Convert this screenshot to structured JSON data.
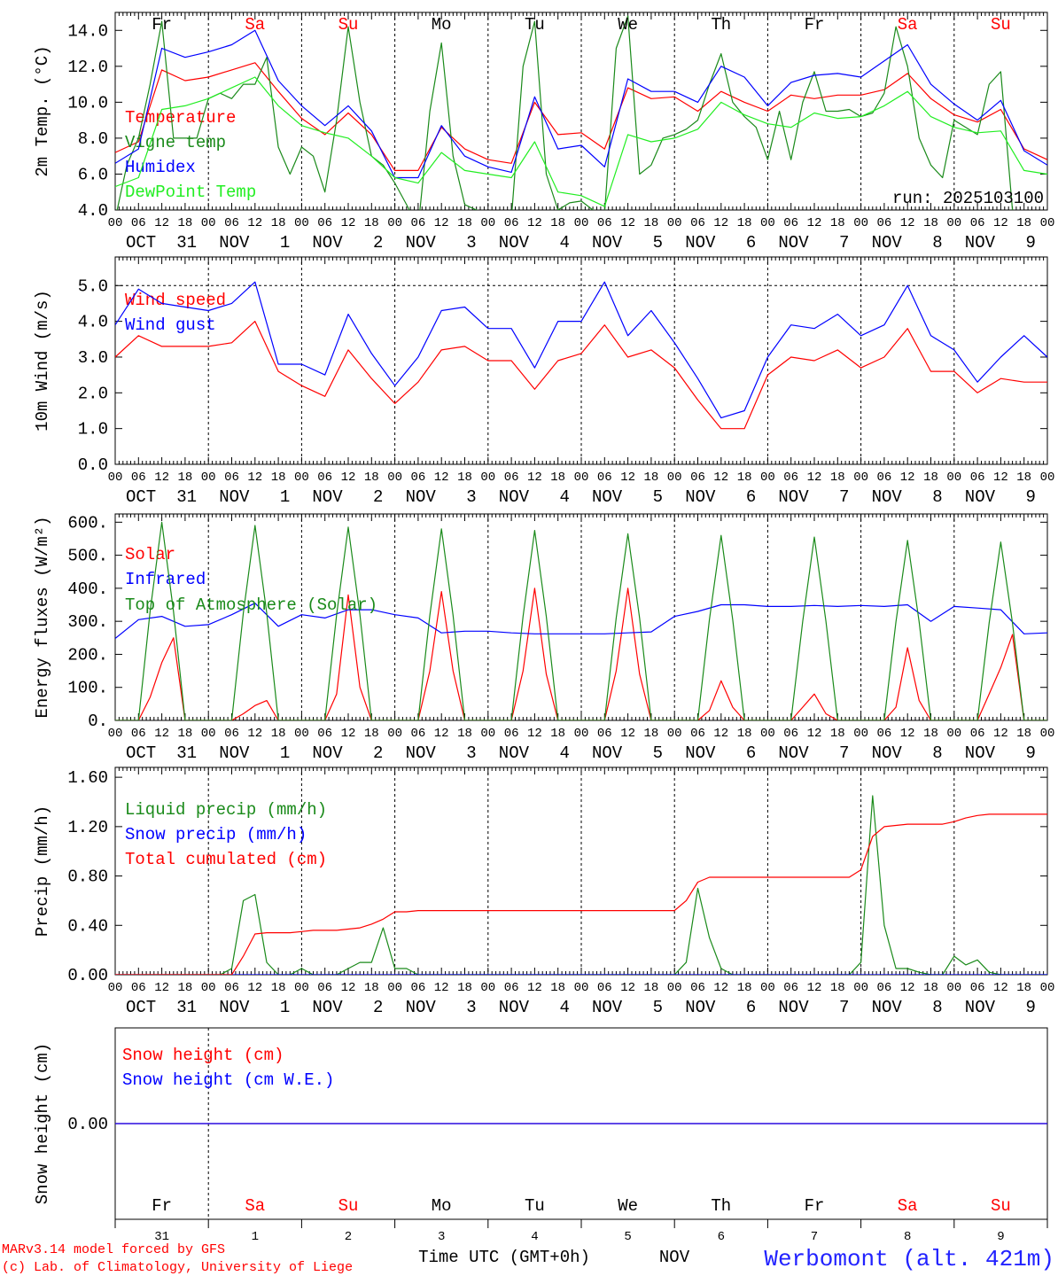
{
  "chart_data": {
    "type": "line",
    "start": "2025-10-31 00 UTC",
    "days": 10,
    "x_axis": {
      "hour_labels": [
        "00",
        "06",
        "12",
        "18"
      ],
      "final_hour_label": "00",
      "dates": [
        {
          "month": "OCT",
          "day": "31"
        },
        {
          "month": "NOV",
          "day": "1"
        },
        {
          "month": "NOV",
          "day": "2"
        },
        {
          "month": "NOV",
          "day": "3"
        },
        {
          "month": "NOV",
          "day": "4"
        },
        {
          "month": "NOV",
          "day": "5"
        },
        {
          "month": "NOV",
          "day": "6"
        },
        {
          "month": "NOV",
          "day": "7"
        },
        {
          "month": "NOV",
          "day": "8"
        },
        {
          "month": "NOV",
          "day": "9"
        }
      ],
      "weekdays": [
        {
          "label": "Fr",
          "weekend": false
        },
        {
          "label": "Sa",
          "weekend": true
        },
        {
          "label": "Su",
          "weekend": true
        },
        {
          "label": "Mo",
          "weekend": false
        },
        {
          "label": "Tu",
          "weekend": false
        },
        {
          "label": "We",
          "weekend": false
        },
        {
          "label": "Th",
          "weekend": false
        },
        {
          "label": "Fr",
          "weekend": false
        },
        {
          "label": "Sa",
          "weekend": true
        },
        {
          "label": "Su",
          "weekend": true
        }
      ],
      "day_numbers": [
        "31",
        "1",
        "2",
        "3",
        "4",
        "5",
        "6",
        "7",
        "8",
        "9"
      ],
      "month_label": "NOV",
      "xlabel": "Time UTC (GMT+0h)"
    },
    "panels": [
      {
        "id": "temp",
        "ylabel": "2m Temp. (°C)",
        "ylim": [
          4,
          15
        ],
        "yticks": [
          4.0,
          6.0,
          8.0,
          10.0,
          12.0,
          14.0
        ],
        "ytick_labels": [
          "4.0",
          "6.0",
          "8.0",
          "10.0",
          "12.0",
          "14.0"
        ],
        "annotation": "run: 2025103100",
        "series": [
          {
            "name": "Temperature",
            "color": "#ff0000",
            "width": 2,
            "step_hours": 6,
            "values": [
              7.2,
              7.8,
              11.8,
              11.2,
              11.4,
              11.8,
              12.2,
              10.6,
              9.1,
              8.2,
              9.4,
              8.2,
              6.2,
              6.2,
              8.6,
              7.4,
              6.8,
              6.6,
              10.0,
              8.2,
              8.3,
              7.4,
              10.8,
              10.2,
              10.3,
              9.5,
              10.6,
              10.0,
              9.5,
              10.4,
              10.2,
              10.4,
              10.4,
              10.7,
              11.6,
              10.2,
              9.3,
              8.9,
              9.6,
              7.4,
              6.8
            ]
          },
          {
            "name": "Vigne temp",
            "color": "#1a8a1a",
            "width": 1.2,
            "step_hours": 3,
            "values": [
              3.5,
              6.5,
              8.0,
              11.0,
              14.5,
              8.0,
              8.0,
              8.0,
              10.2,
              10.5,
              10.2,
              11.0,
              11.0,
              12.5,
              7.5,
              6.0,
              7.5,
              7.0,
              5.0,
              9.0,
              14.2,
              10.0,
              7.0,
              6.5,
              5.5,
              4.3,
              3.0,
              9.5,
              13.3,
              7.0,
              4.3,
              4.0,
              3.8,
              3.0,
              3.5,
              12.0,
              14.5,
              6.0,
              4.0,
              4.4,
              4.5,
              4.0,
              3.8,
              13.0,
              14.8,
              6.0,
              6.5,
              8.0,
              8.2,
              8.5,
              9.0,
              11.0,
              12.7,
              10.0,
              9.2,
              8.6,
              6.8,
              9.5,
              6.8,
              10.0,
              11.7,
              9.5,
              9.5,
              9.6,
              9.2,
              9.4,
              10.5,
              14.2,
              12.0,
              8.0,
              6.5,
              5.8,
              9.0,
              8.6,
              8.2,
              11.0,
              11.7,
              4.0,
              3.0,
              3.0,
              3.0
            ]
          },
          {
            "name": "Humidex",
            "color": "#0000ff",
            "width": 1.2,
            "step_hours": 6,
            "values": [
              6.6,
              7.4,
              13.0,
              12.5,
              12.8,
              13.2,
              14.0,
              11.2,
              9.8,
              8.7,
              9.8,
              8.4,
              5.8,
              5.8,
              8.7,
              7.0,
              6.4,
              6.1,
              10.3,
              7.4,
              7.6,
              6.4,
              11.3,
              10.6,
              10.6,
              10.0,
              12.0,
              11.4,
              9.8,
              11.1,
              11.5,
              11.6,
              11.4,
              12.3,
              13.2,
              11.0,
              9.9,
              9.0,
              10.1,
              7.3,
              6.5
            ]
          },
          {
            "name": "DewPoint Temp",
            "color": "#22ee22",
            "width": 1.2,
            "step_hours": 6,
            "values": [
              5.3,
              5.8,
              9.6,
              9.8,
              10.2,
              10.8,
              11.4,
              9.8,
              8.7,
              8.3,
              8.0,
              7.0,
              5.8,
              5.5,
              7.2,
              6.2,
              6.0,
              5.8,
              7.8,
              5.0,
              4.8,
              4.2,
              8.2,
              7.8,
              8.0,
              8.5,
              10.0,
              9.3,
              8.8,
              8.6,
              9.4,
              9.1,
              9.2,
              9.8,
              10.6,
              9.2,
              8.6,
              8.3,
              8.4,
              6.2,
              6.0
            ]
          }
        ]
      },
      {
        "id": "wind",
        "ylabel": "10m Wind (m/s)",
        "ylim": [
          0,
          5.8
        ],
        "yticks": [
          0,
          1,
          2,
          3,
          4,
          5
        ],
        "ytick_labels": [
          "0.0",
          "1.0",
          "2.0",
          "3.0",
          "4.0",
          "5.0"
        ],
        "reference_line": 5.0,
        "series": [
          {
            "name": "Wind speed",
            "color": "#ff0000",
            "width": 1.6,
            "step_hours": 6,
            "values": [
              3.0,
              3.6,
              3.3,
              3.3,
              3.3,
              3.4,
              4.0,
              2.6,
              2.2,
              1.9,
              3.2,
              2.4,
              1.7,
              2.3,
              3.2,
              3.3,
              2.9,
              2.9,
              2.1,
              2.9,
              3.1,
              3.9,
              3.0,
              3.2,
              2.7,
              1.8,
              1.0,
              1.0,
              2.5,
              3.0,
              2.9,
              3.2,
              2.7,
              3.0,
              3.8,
              2.6,
              2.6,
              2.0,
              2.4,
              2.3,
              2.3
            ]
          },
          {
            "name": "Wind gust",
            "color": "#0000ff",
            "width": 1.2,
            "step_hours": 6,
            "values": [
              3.9,
              4.9,
              4.5,
              4.4,
              4.3,
              4.5,
              5.1,
              2.8,
              2.8,
              2.5,
              4.2,
              3.1,
              2.2,
              3.0,
              4.3,
              4.4,
              3.8,
              3.8,
              2.7,
              4.0,
              4.0,
              5.1,
              3.6,
              4.3,
              3.4,
              2.4,
              1.3,
              1.5,
              3.0,
              3.9,
              3.8,
              4.2,
              3.6,
              3.9,
              5.0,
              3.6,
              3.2,
              2.3,
              3.0,
              3.6,
              3.0
            ]
          }
        ]
      },
      {
        "id": "energy",
        "ylabel": "Energy fluxes (W/m²)",
        "ylim": [
          0,
          625
        ],
        "yticks": [
          0,
          100,
          200,
          300,
          400,
          500,
          600
        ],
        "ytick_labels": [
          "0.",
          "100.",
          "200.",
          "300.",
          "400.",
          "500.",
          "600."
        ],
        "series": [
          {
            "name": "Solar",
            "color": "#ff0000",
            "width": 1.2,
            "step_hours": 3,
            "values": [
              0,
              0,
              0,
              70,
              175,
              250,
              0,
              0,
              0,
              0,
              0,
              20,
              45,
              60,
              0,
              0,
              0,
              0,
              0,
              80,
              380,
              100,
              0,
              0,
              0,
              0,
              0,
              150,
              390,
              150,
              0,
              0,
              0,
              0,
              0,
              150,
              400,
              140,
              0,
              0,
              0,
              0,
              0,
              150,
              400,
              140,
              0,
              0,
              0,
              0,
              0,
              30,
              120,
              40,
              0,
              0,
              0,
              0,
              0,
              40,
              80,
              20,
              0,
              0,
              0,
              0,
              0,
              40,
              220,
              60,
              0,
              0,
              0,
              0,
              0,
              80,
              160,
              260,
              0,
              0,
              0
            ]
          },
          {
            "name": "Infrared",
            "color": "#0000ff",
            "width": 1.6,
            "step_hours": 6,
            "values": [
              248,
              305,
              315,
              285,
              290,
              320,
              355,
              285,
              320,
              310,
              335,
              335,
              320,
              310,
              265,
              270,
              270,
              265,
              262,
              262,
              262,
              262,
              265,
              268,
              315,
              330,
              350,
              350,
              345,
              345,
              348,
              345,
              348,
              345,
              350,
              300,
              345,
              340,
              335,
              262,
              265
            ]
          },
          {
            "name": "Top of Atmosphere (Solar)",
            "color": "#1a8a1a",
            "width": 1.2,
            "step_hours": 3,
            "values": [
              0,
              0,
              0,
              330,
              600,
              330,
              0,
              0,
              0,
              0,
              0,
              325,
              590,
              325,
              0,
              0,
              0,
              0,
              0,
              320,
              585,
              320,
              0,
              0,
              0,
              0,
              0,
              318,
              580,
              318,
              0,
              0,
              0,
              0,
              0,
              315,
              575,
              315,
              0,
              0,
              0,
              0,
              0,
              310,
              565,
              310,
              0,
              0,
              0,
              0,
              0,
              305,
              560,
              305,
              0,
              0,
              0,
              0,
              0,
              300,
              555,
              300,
              0,
              0,
              0,
              0,
              0,
              298,
              545,
              298,
              0,
              0,
              0,
              0,
              0,
              295,
              540,
              295,
              0,
              0,
              0
            ]
          }
        ]
      },
      {
        "id": "precip",
        "ylabel": "Precip (mm/h)",
        "ylim": [
          0,
          1.68
        ],
        "yticks": [
          0,
          0.4,
          0.8,
          1.2,
          1.6
        ],
        "ytick_labels": [
          "0.00",
          "0.40",
          "0.80",
          "1.20",
          "1.60"
        ],
        "series": [
          {
            "name": "Liquid precip (mm/h)",
            "color": "#1a8a1a",
            "width": 1.2,
            "step_hours": 3,
            "values": [
              0,
              0,
              0,
              0,
              0,
              0,
              0,
              0,
              0,
              0,
              0.05,
              0.6,
              0.65,
              0.1,
              0,
              0,
              0.05,
              0,
              0,
              0,
              0.05,
              0.1,
              0.1,
              0.38,
              0.05,
              0.05,
              0,
              0,
              0,
              0,
              0,
              0,
              0,
              0,
              0,
              0,
              0,
              0,
              0,
              0,
              0,
              0,
              0,
              0,
              0,
              0,
              0,
              0,
              0,
              0.1,
              0.7,
              0.3,
              0.05,
              0,
              0,
              0,
              0,
              0,
              0,
              0,
              0,
              0,
              0,
              0,
              0.1,
              1.45,
              0.4,
              0.05,
              0.05,
              0.02,
              0,
              0,
              0.15,
              0.08,
              0.12,
              0.02,
              0,
              0,
              0,
              0,
              0
            ]
          },
          {
            "name": "Snow precip (mm/h)",
            "color": "#0000ff",
            "width": 1.2,
            "step_hours": 24,
            "values": [
              0,
              0,
              0,
              0,
              0,
              0,
              0,
              0,
              0,
              0,
              0
            ]
          },
          {
            "name": "Total cumulated (cm)",
            "color": "#ff0000",
            "width": 1.2,
            "step_hours": 3,
            "values": [
              0,
              0,
              0,
              0,
              0,
              0,
              0,
              0,
              0,
              0,
              0,
              0.15,
              0.33,
              0.34,
              0.34,
              0.34,
              0.35,
              0.36,
              0.36,
              0.36,
              0.37,
              0.38,
              0.41,
              0.45,
              0.51,
              0.51,
              0.52,
              0.52,
              0.52,
              0.52,
              0.52,
              0.52,
              0.52,
              0.52,
              0.52,
              0.52,
              0.52,
              0.52,
              0.52,
              0.52,
              0.52,
              0.52,
              0.52,
              0.52,
              0.52,
              0.52,
              0.52,
              0.52,
              0.52,
              0.6,
              0.75,
              0.79,
              0.79,
              0.79,
              0.79,
              0.79,
              0.79,
              0.79,
              0.79,
              0.79,
              0.79,
              0.79,
              0.79,
              0.79,
              0.85,
              1.12,
              1.2,
              1.21,
              1.22,
              1.22,
              1.22,
              1.22,
              1.24,
              1.27,
              1.29,
              1.3,
              1.3,
              1.3,
              1.3,
              1.3,
              1.3
            ]
          }
        ]
      },
      {
        "id": "snow",
        "ylabel": "Snow height (cm)",
        "ylim": [
          -1,
          1
        ],
        "yticks": [
          0
        ],
        "ytick_labels": [
          "0.00"
        ],
        "series": [
          {
            "name": "Snow height (cm)",
            "color": "#ff0000",
            "width": 1.2,
            "step_hours": 24,
            "values": [
              0,
              0,
              0,
              0,
              0,
              0,
              0,
              0,
              0,
              0,
              0
            ]
          },
          {
            "name": "Snow height (cm W.E.)",
            "color": "#0000ff",
            "width": 1.2,
            "step_hours": 24,
            "values": [
              0,
              0,
              0,
              0,
              0,
              0,
              0,
              0,
              0,
              0,
              0
            ]
          }
        ]
      }
    ]
  },
  "footer": {
    "model": "MARv3.14 model forced by GFS",
    "credit": "(c) Lab. of Climatology, University of Liege",
    "station": "Werbomont (alt. 421m)"
  }
}
